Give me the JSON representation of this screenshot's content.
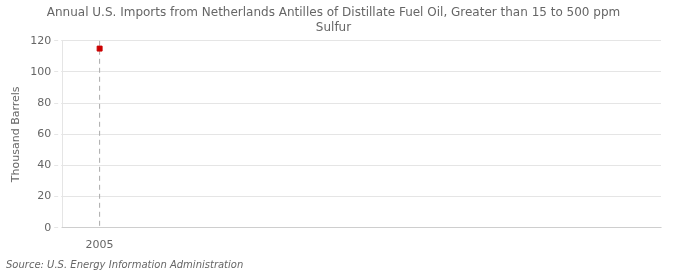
{
  "chart_data": {
    "type": "scatter",
    "title": [
      "Annual U.S. Imports from Netherlands Antilles of Distillate Fuel Oil, Greater than 15 to 500 ppm",
      "Sulfur"
    ],
    "ylabel": "Thousand Barrels",
    "x": [
      2005
    ],
    "values": [
      115
    ],
    "color": "#cc0000",
    "marker": "square",
    "xlim": [
      2004.4,
      2014.0
    ],
    "xticks": [
      2005
    ],
    "ylim": [
      0,
      120
    ],
    "yticks": [
      0,
      20,
      40,
      60,
      80,
      100,
      120
    ],
    "grid": true,
    "annotations": [
      {
        "type": "vline",
        "x": 2005,
        "color": "#aaaaaa",
        "line_style": "dashed"
      },
      {
        "type": "text",
        "text": "Source: U.S. Energy Information Administration"
      }
    ]
  }
}
